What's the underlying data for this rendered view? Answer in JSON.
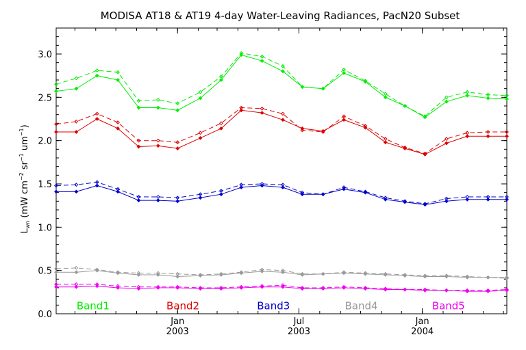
{
  "chart_data": {
    "type": "line",
    "title": "MODISA AT18 & AT19 4-day Water-Leaving Radiances, PacN20 Subset",
    "ylabel": "L_wn (mW cm^-2 sr^-1 um^-1)",
    "ylabel_parts": {
      "main": "L",
      "sub": "wn",
      "open": " (mW cm",
      "e1": "−2",
      "mid1": " sr",
      "e2": "−1",
      "mid2": " um",
      "e3": "−1",
      "close": ")"
    },
    "xlabel": "",
    "ylim": [
      0.0,
      3.3
    ],
    "xlim": [
      "2002-07-04",
      "2004-05-06"
    ],
    "y_ticks": [
      {
        "value": 0.0,
        "label": "0.0"
      },
      {
        "value": 0.5,
        "label": "0.5"
      },
      {
        "value": 1.0,
        "label": "1.0"
      },
      {
        "value": 1.5,
        "label": "1.5"
      },
      {
        "value": 2.0,
        "label": "2.0"
      },
      {
        "value": 2.5,
        "label": "2.5"
      },
      {
        "value": 3.0,
        "label": "3.0"
      }
    ],
    "x_ticks": [
      {
        "date": "2003-01-01",
        "month": "Jan",
        "year": "2003"
      },
      {
        "date": "2003-07-01",
        "month": "Jul",
        "year": "2003"
      },
      {
        "date": "2004-01-01",
        "month": "Jan",
        "year": "2004"
      }
    ],
    "x": [
      "2002-07-04",
      "2002-08-03",
      "2002-09-03",
      "2002-10-04",
      "2002-11-04",
      "2002-12-03",
      "2003-01-01",
      "2003-02-04",
      "2003-03-07",
      "2003-04-06",
      "2003-05-07",
      "2003-06-07",
      "2003-07-06",
      "2003-08-06",
      "2003-09-06",
      "2003-10-08",
      "2003-11-07",
      "2003-12-06",
      "2004-01-05",
      "2004-02-06",
      "2004-03-08",
      "2004-04-08",
      "2004-05-06"
    ],
    "series": [
      {
        "name": "Band1",
        "color": "#00ee00",
        "line": "solid",
        "values": [
          2.57,
          2.6,
          2.75,
          2.7,
          2.38,
          2.38,
          2.35,
          2.49,
          2.7,
          2.99,
          2.92,
          2.8,
          2.62,
          2.6,
          2.78,
          2.68,
          2.5,
          2.4,
          2.27,
          2.45,
          2.52,
          2.49,
          2.48
        ]
      },
      {
        "name": "Band1",
        "color": "#00ee00",
        "line": "dashed",
        "values": [
          2.65,
          2.72,
          2.81,
          2.79,
          2.46,
          2.47,
          2.43,
          2.56,
          2.74,
          3.01,
          2.97,
          2.86,
          2.62,
          2.6,
          2.82,
          2.69,
          2.54,
          2.4,
          2.28,
          2.5,
          2.56,
          2.53,
          2.52
        ]
      },
      {
        "name": "Band2",
        "color": "#dd0000",
        "line": "solid",
        "values": [
          2.1,
          2.1,
          2.25,
          2.14,
          1.93,
          1.94,
          1.91,
          2.03,
          2.14,
          2.35,
          2.32,
          2.24,
          2.14,
          2.11,
          2.24,
          2.15,
          1.98,
          1.91,
          1.84,
          1.97,
          2.05,
          2.05,
          2.05
        ]
      },
      {
        "name": "Band2",
        "color": "#dd0000",
        "line": "dashed",
        "values": [
          2.19,
          2.22,
          2.31,
          2.21,
          2.0,
          2.0,
          1.98,
          2.09,
          2.2,
          2.38,
          2.37,
          2.31,
          2.12,
          2.1,
          2.28,
          2.17,
          2.02,
          1.92,
          1.85,
          2.02,
          2.09,
          2.1,
          2.1
        ]
      },
      {
        "name": "Band3",
        "color": "#0000cc",
        "line": "solid",
        "values": [
          1.41,
          1.41,
          1.48,
          1.41,
          1.31,
          1.31,
          1.3,
          1.34,
          1.38,
          1.46,
          1.48,
          1.46,
          1.38,
          1.38,
          1.44,
          1.4,
          1.32,
          1.29,
          1.26,
          1.3,
          1.32,
          1.32,
          1.32
        ]
      },
      {
        "name": "Band3",
        "color": "#0000cc",
        "line": "dashed",
        "values": [
          1.48,
          1.49,
          1.52,
          1.44,
          1.35,
          1.35,
          1.34,
          1.38,
          1.42,
          1.49,
          1.5,
          1.49,
          1.4,
          1.38,
          1.46,
          1.41,
          1.34,
          1.3,
          1.27,
          1.33,
          1.35,
          1.35,
          1.35
        ]
      },
      {
        "name": "Band4",
        "color": "#999999",
        "line": "solid",
        "values": [
          0.48,
          0.48,
          0.5,
          0.47,
          0.45,
          0.45,
          0.43,
          0.44,
          0.45,
          0.47,
          0.49,
          0.48,
          0.45,
          0.46,
          0.47,
          0.46,
          0.45,
          0.44,
          0.43,
          0.43,
          0.42,
          0.42,
          0.41
        ]
      },
      {
        "name": "Band4",
        "color": "#999999",
        "line": "dashed",
        "values": [
          0.52,
          0.53,
          0.51,
          0.48,
          0.47,
          0.47,
          0.46,
          0.45,
          0.46,
          0.48,
          0.51,
          0.5,
          0.46,
          0.46,
          0.48,
          0.47,
          0.46,
          0.45,
          0.44,
          0.44,
          0.43,
          0.42,
          0.42
        ]
      },
      {
        "name": "Band5",
        "color": "#ee00ee",
        "line": "solid",
        "values": [
          0.31,
          0.31,
          0.32,
          0.3,
          0.29,
          0.3,
          0.3,
          0.29,
          0.29,
          0.3,
          0.31,
          0.31,
          0.29,
          0.29,
          0.3,
          0.29,
          0.28,
          0.28,
          0.27,
          0.27,
          0.26,
          0.26,
          0.27
        ]
      },
      {
        "name": "Band5",
        "color": "#ee00ee",
        "line": "dashed",
        "values": [
          0.34,
          0.34,
          0.34,
          0.32,
          0.31,
          0.31,
          0.31,
          0.3,
          0.3,
          0.31,
          0.32,
          0.33,
          0.3,
          0.3,
          0.31,
          0.3,
          0.29,
          0.28,
          0.28,
          0.27,
          0.27,
          0.27,
          0.28
        ]
      }
    ],
    "legend": [
      {
        "label": "Band1",
        "color": "#00ee00",
        "x": "2002-08-28"
      },
      {
        "label": "Band2",
        "color": "#dd0000",
        "x": "2003-01-09"
      },
      {
        "label": "Band3",
        "color": "#0000cc",
        "x": "2003-05-24"
      },
      {
        "label": "Band4",
        "color": "#999999",
        "x": "2003-10-02"
      },
      {
        "label": "Band5",
        "color": "#ee00ee",
        "x": "2004-02-09"
      }
    ],
    "legend_y": 0.09,
    "grid": false,
    "axis_color": "#000000"
  }
}
